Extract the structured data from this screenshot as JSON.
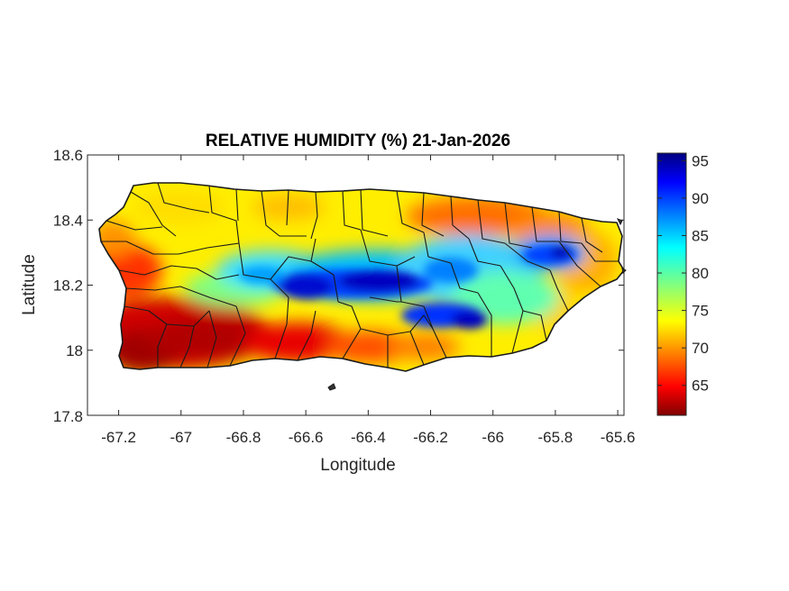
{
  "title": "RELATIVE HUMIDITY (%) 21-Jan-2026",
  "xlabel": "Longitude",
  "ylabel": "Latitude",
  "x_ticks": [
    "-67.2",
    "-67",
    "-66.8",
    "-66.6",
    "-66.4",
    "-66.2",
    "-66",
    "-65.8",
    "-65.6"
  ],
  "x_tick_values": [
    -67.2,
    -67.0,
    -66.8,
    -66.6,
    -66.4,
    -66.2,
    -66.0,
    -65.8,
    -65.6
  ],
  "y_ticks": [
    "18.6",
    "18.4",
    "18.2",
    "18"
  ],
  "y_tick_values": [
    18.6,
    18.4,
    18.2,
    18.0
  ],
  "y_min_label": "17.8",
  "xlim": [
    -67.3,
    -65.58
  ],
  "ylim": [
    17.8,
    18.6
  ],
  "colorbar": {
    "ticks": [
      "95",
      "90",
      "85",
      "80",
      "75",
      "70",
      "65"
    ],
    "tick_values": [
      95,
      90,
      85,
      80,
      75,
      70,
      65
    ],
    "range": [
      61,
      96
    ],
    "colormap": "jet"
  },
  "colors": {
    "dark_red": "#800000",
    "red": "#ff0000",
    "orange": "#ff8c00",
    "yellow": "#ffff00",
    "cyan": "#00ffff",
    "blue": "#0000ff",
    "dark_blue": "#000080"
  },
  "map_data": {
    "region": "Puerto Rico",
    "field": "relative humidity (%)",
    "pattern": {
      "southwest_coast": 62,
      "south_coast": 66,
      "north_coast": 73,
      "northeast_coast": 70,
      "east_end": 72,
      "central_mountains": 92,
      "east_central": 88,
      "west_interior": 76
    }
  }
}
